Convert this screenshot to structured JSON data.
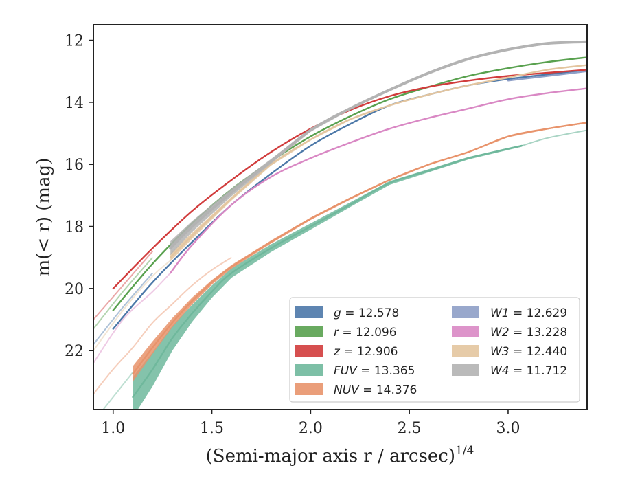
{
  "chart_data": {
    "type": "line",
    "xlabel": "(Semi-major axis r / arcsec)",
    "xlabel_sup": "1/4",
    "ylabel": "m(< r) (mag)",
    "xlim": [
      0.9,
      3.4
    ],
    "ylim": [
      23.9,
      11.5
    ],
    "y_inverted": true,
    "xticks": [
      "1.0",
      "1.5",
      "2.0",
      "2.5",
      "3.0"
    ],
    "yticks": [
      "12",
      "14",
      "16",
      "18",
      "20",
      "22"
    ],
    "xtick_values": [
      1.0,
      1.5,
      2.0,
      2.5,
      3.0
    ],
    "ytick_values": [
      12,
      14,
      16,
      18,
      20,
      22
    ],
    "grid": false,
    "legend_placement": "lower-right",
    "series": [
      {
        "name": "g = 12.578",
        "var": "g",
        "val": "12.578",
        "color": "#4c78a8",
        "faint": [
          [
            0.9,
            21.8
          ],
          [
            1.05,
            20.6
          ],
          [
            1.2,
            19.5
          ]
        ],
        "x": [
          1.0,
          1.2,
          1.4,
          1.6,
          1.8,
          2.0,
          2.2,
          2.4,
          2.6,
          2.8,
          3.0,
          3.2,
          3.4
        ],
        "y": [
          21.3,
          19.8,
          18.5,
          17.3,
          16.3,
          15.4,
          14.7,
          14.1,
          13.75,
          13.45,
          13.25,
          13.1,
          12.95
        ]
      },
      {
        "name": "r = 12.096",
        "var": "r",
        "val": "12.096",
        "color": "#59a14f",
        "faint": [
          [
            0.9,
            21.3
          ],
          [
            1.05,
            20.1
          ],
          [
            1.2,
            19.0
          ]
        ],
        "x": [
          1.0,
          1.2,
          1.4,
          1.6,
          1.8,
          2.0,
          2.2,
          2.4,
          2.6,
          2.8,
          3.0,
          3.2,
          3.4
        ],
        "y": [
          20.7,
          19.2,
          17.9,
          16.8,
          15.9,
          15.1,
          14.45,
          13.9,
          13.5,
          13.15,
          12.9,
          12.7,
          12.55
        ]
      },
      {
        "name": "z = 12.906",
        "var": "z",
        "val": "12.906",
        "color": "#d13c3c",
        "faint": [
          [
            0.9,
            21.0
          ],
          [
            1.05,
            19.9
          ],
          [
            1.2,
            18.8
          ]
        ],
        "x": [
          1.0,
          1.2,
          1.4,
          1.6,
          1.8,
          2.0,
          2.2,
          2.4,
          2.6,
          2.8,
          3.0,
          3.2,
          3.4
        ],
        "y": [
          20.0,
          18.7,
          17.5,
          16.5,
          15.6,
          14.85,
          14.25,
          13.8,
          13.5,
          13.3,
          13.15,
          13.05,
          12.95
        ]
      },
      {
        "name": "FUV = 13.365",
        "var": "FUV",
        "val": "13.365",
        "color": "#6fb89c",
        "faint": [
          [
            0.9,
            24.3
          ],
          [
            1.0,
            23.5
          ],
          [
            1.1,
            22.7
          ]
        ],
        "x": [
          1.1,
          1.2,
          1.3,
          1.4,
          1.5,
          1.6,
          1.8,
          2.0,
          2.2,
          2.4,
          2.6,
          2.8,
          3.0,
          3.07
        ],
        "y": [
          23.5,
          22.6,
          21.6,
          20.8,
          20.1,
          19.5,
          18.7,
          18.0,
          17.3,
          16.6,
          16.2,
          15.8,
          15.5,
          15.4
        ],
        "band": [
          1.3,
          1.1,
          0.8,
          0.55,
          0.4,
          0.3,
          0.25,
          0.2,
          0.15,
          0.12,
          0.1,
          0.08,
          0.07,
          0.06
        ],
        "tail_x": [
          3.07,
          3.2,
          3.4
        ],
        "tail_y": [
          15.4,
          15.15,
          14.9
        ]
      },
      {
        "name": "NUV = 14.376",
        "var": "NUV",
        "val": "14.376",
        "color": "#e8936b",
        "faint": [
          [
            0.9,
            23.4
          ],
          [
            1.0,
            22.6
          ],
          [
            1.1,
            21.9
          ],
          [
            1.2,
            21.1
          ],
          [
            1.3,
            20.5
          ],
          [
            1.4,
            19.9
          ],
          [
            1.5,
            19.4
          ],
          [
            1.6,
            19.0
          ]
        ],
        "x": [
          1.1,
          1.2,
          1.3,
          1.4,
          1.5,
          1.6,
          1.8,
          2.0,
          2.2,
          2.4,
          2.6,
          2.8,
          3.0,
          3.2,
          3.4
        ],
        "y": [
          22.75,
          21.9,
          21.1,
          20.4,
          19.8,
          19.3,
          18.5,
          17.75,
          17.1,
          16.5,
          16.0,
          15.6,
          15.1,
          14.85,
          14.65
        ],
        "band": [
          0.5,
          0.4,
          0.3,
          0.22,
          0.15,
          0.12,
          0.1,
          0.08,
          0.07,
          0.06,
          0.05,
          0.05,
          0.05,
          0.05,
          0.05
        ]
      },
      {
        "name": "W1 = 12.629",
        "var": "W1",
        "val": "12.629",
        "color": "#8e9fc7",
        "faint": [],
        "x": [
          3.0,
          3.2,
          3.4
        ],
        "y": [
          13.3,
          13.15,
          13.0
        ]
      },
      {
        "name": "W2 = 13.228",
        "var": "W2",
        "val": "13.228",
        "color": "#d988c4",
        "faint": [
          [
            0.9,
            22.4
          ],
          [
            1.05,
            21.0
          ],
          [
            1.2,
            20.1
          ],
          [
            1.29,
            19.5
          ]
        ],
        "x": [
          1.29,
          1.4,
          1.6,
          1.8,
          2.0,
          2.2,
          2.4,
          2.6,
          2.8,
          3.0,
          3.2,
          3.4
        ],
        "y": [
          19.5,
          18.6,
          17.3,
          16.4,
          15.8,
          15.3,
          14.85,
          14.5,
          14.2,
          13.9,
          13.7,
          13.55
        ]
      },
      {
        "name": "W3 = 12.440",
        "var": "W3",
        "val": "12.440",
        "color": "#e3c59f",
        "faint": [
          [
            0.9,
            22.0
          ],
          [
            1.05,
            20.7
          ],
          [
            1.2,
            19.6
          ],
          [
            1.29,
            19.1
          ]
        ],
        "x": [
          1.29,
          1.4,
          1.6,
          1.8,
          2.0,
          2.2,
          2.4,
          2.6,
          2.8,
          3.0,
          3.2,
          3.4
        ],
        "y": [
          19.0,
          18.3,
          17.1,
          16.0,
          15.2,
          14.55,
          14.1,
          13.75,
          13.45,
          13.2,
          12.95,
          12.8
        ],
        "band": [
          0.25,
          0.2,
          0.12,
          0.08,
          0.06,
          0.05,
          0.04,
          0.04,
          0.04,
          0.04,
          0.04,
          0.04
        ]
      },
      {
        "name": "W4 = 11.712",
        "var": "W4",
        "val": "11.712",
        "color": "#b3b3b3",
        "faint": [],
        "x": [
          1.29,
          1.4,
          1.6,
          1.8,
          2.0,
          2.2,
          2.4,
          2.6,
          2.8,
          3.0,
          3.2,
          3.4
        ],
        "y": [
          18.7,
          18.0,
          16.9,
          15.9,
          14.9,
          14.2,
          13.6,
          13.05,
          12.6,
          12.3,
          12.1,
          12.05
        ],
        "band": [
          0.45,
          0.35,
          0.25,
          0.15,
          0.1,
          0.08,
          0.06,
          0.05,
          0.05,
          0.05,
          0.05,
          0.05
        ]
      }
    ]
  }
}
